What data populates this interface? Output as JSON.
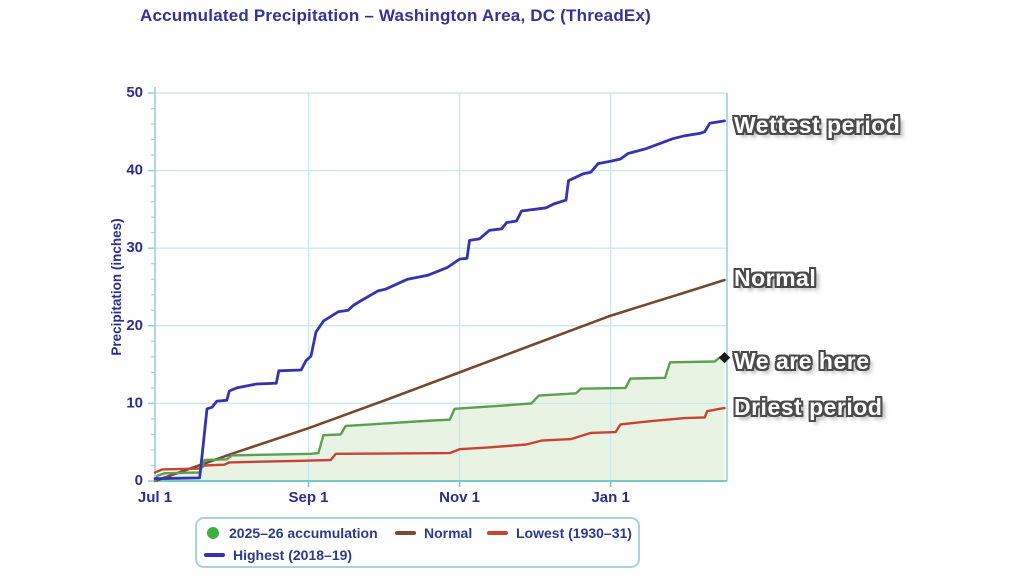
{
  "title": "Accumulated Precipitation – Washington Area, DC (ThreadEx)",
  "annotations": {
    "wettest": "Wettest period",
    "normal": "Normal",
    "here": "We are here",
    "driest": "Driest period"
  },
  "legend": {
    "items": [
      {
        "label": "2025–26 accumulation",
        "swatch": "dot",
        "color": "#3cb043"
      },
      {
        "label": "Normal",
        "swatch": "line",
        "color": "#7a4a30"
      },
      {
        "label": "Lowest (1930–31)",
        "swatch": "line",
        "color": "#c94334"
      },
      {
        "label": "Highest (2018–19)",
        "swatch": "line",
        "color": "#3434b2"
      }
    ]
  },
  "chart_data": {
    "type": "line",
    "title": "Accumulated Precipitation – Washington Area, DC (ThreadEx)",
    "xlabel": "",
    "ylabel": "Precipitation (inches)",
    "ylim": [
      0,
      50
    ],
    "y_ticks": [
      0,
      10,
      20,
      30,
      40,
      50
    ],
    "y_minor_step": 2,
    "x_days_range": [
      0,
      231
    ],
    "x_ticks": [
      {
        "label": "Jul 1",
        "day": 0
      },
      {
        "label": "Sep 1",
        "day": 62
      },
      {
        "label": "Nov 1",
        "day": 123
      },
      {
        "label": "Jan 1",
        "day": 184
      }
    ],
    "grid": true,
    "legend_position": "bottom",
    "colors": {
      "grid": "#cde7ef",
      "axis": "#9ad2da",
      "bottom_axis": "#74c8cc",
      "tick_text": "#2b2e8e",
      "area_fill": "rgba(150,200,130,0.22)",
      "end_marker": "#1a1a1a"
    },
    "series": [
      {
        "name": "Normal",
        "color": "#774830",
        "width": 2.6,
        "area": false,
        "points": [
          [
            0,
            0
          ],
          [
            31,
            3.5
          ],
          [
            62,
            6.8
          ],
          [
            92,
            10.3
          ],
          [
            123,
            14.0
          ],
          [
            153,
            17.6
          ],
          [
            184,
            21.3
          ],
          [
            215,
            24.4
          ],
          [
            230,
            25.9
          ]
        ]
      },
      {
        "name": "Lowest (1930–31)",
        "color": "#c94334",
        "width": 2.4,
        "area": false,
        "points": [
          [
            0,
            1.1
          ],
          [
            3,
            1.5
          ],
          [
            18,
            1.6
          ],
          [
            20,
            2.0
          ],
          [
            28,
            2.1
          ],
          [
            30,
            2.4
          ],
          [
            59,
            2.6
          ],
          [
            71,
            2.7
          ],
          [
            73,
            3.5
          ],
          [
            119,
            3.6
          ],
          [
            123,
            4.1
          ],
          [
            134,
            4.3
          ],
          [
            150,
            4.7
          ],
          [
            156,
            5.2
          ],
          [
            168,
            5.4
          ],
          [
            176,
            6.2
          ],
          [
            186,
            6.3
          ],
          [
            188,
            7.3
          ],
          [
            200,
            7.7
          ],
          [
            214,
            8.1
          ],
          [
            222,
            8.2
          ],
          [
            223,
            9.0
          ],
          [
            228,
            9.3
          ],
          [
            230,
            9.4
          ]
        ]
      },
      {
        "name": "2025–26 accumulation",
        "color": "#5aa04e",
        "width": 2.4,
        "area": true,
        "end_marker": true,
        "points": [
          [
            0,
            0.0
          ],
          [
            1,
            0.7
          ],
          [
            4,
            1.0
          ],
          [
            18,
            1.1
          ],
          [
            20,
            2.7
          ],
          [
            29,
            2.8
          ],
          [
            31,
            3.3
          ],
          [
            63,
            3.5
          ],
          [
            66,
            3.6
          ],
          [
            68,
            5.9
          ],
          [
            75,
            6.0
          ],
          [
            77,
            7.1
          ],
          [
            87,
            7.3
          ],
          [
            112,
            7.8
          ],
          [
            119,
            7.9
          ],
          [
            121,
            9.3
          ],
          [
            140,
            9.7
          ],
          [
            152,
            10.0
          ],
          [
            155,
            11.0
          ],
          [
            170,
            11.3
          ],
          [
            172,
            11.9
          ],
          [
            190,
            12.0
          ],
          [
            192,
            13.2
          ],
          [
            206,
            13.3
          ],
          [
            208,
            15.3
          ],
          [
            226,
            15.4
          ],
          [
            228,
            15.9
          ],
          [
            230,
            15.9
          ]
        ]
      },
      {
        "name": "Highest (2018–19)",
        "color": "#3434b2",
        "width": 2.8,
        "area": false,
        "points": [
          [
            0,
            0.3
          ],
          [
            18,
            0.4
          ],
          [
            19,
            3.2
          ],
          [
            21,
            9.3
          ],
          [
            23,
            9.5
          ],
          [
            25,
            10.3
          ],
          [
            29,
            10.4
          ],
          [
            30,
            11.6
          ],
          [
            33,
            12.0
          ],
          [
            41,
            12.5
          ],
          [
            49,
            12.6
          ],
          [
            50,
            14.2
          ],
          [
            59,
            14.3
          ],
          [
            61,
            15.5
          ],
          [
            63,
            16.1
          ],
          [
            65,
            19.2
          ],
          [
            68,
            20.6
          ],
          [
            74,
            21.8
          ],
          [
            78,
            22.0
          ],
          [
            80,
            22.6
          ],
          [
            83,
            23.2
          ],
          [
            90,
            24.5
          ],
          [
            93,
            24.7
          ],
          [
            102,
            26.0
          ],
          [
            110,
            26.5
          ],
          [
            118,
            27.5
          ],
          [
            123,
            28.6
          ],
          [
            126,
            28.7
          ],
          [
            127,
            31.0
          ],
          [
            131,
            31.2
          ],
          [
            135,
            32.3
          ],
          [
            140,
            32.5
          ],
          [
            142,
            33.3
          ],
          [
            146,
            33.5
          ],
          [
            148,
            34.8
          ],
          [
            158,
            35.2
          ],
          [
            161,
            35.7
          ],
          [
            166,
            36.2
          ],
          [
            167,
            38.7
          ],
          [
            173,
            39.6
          ],
          [
            176,
            39.8
          ],
          [
            179,
            40.9
          ],
          [
            184,
            41.2
          ],
          [
            188,
            41.5
          ],
          [
            191,
            42.2
          ],
          [
            198,
            42.8
          ],
          [
            204,
            43.5
          ],
          [
            209,
            44.1
          ],
          [
            214,
            44.5
          ],
          [
            220,
            44.8
          ],
          [
            222,
            45.0
          ],
          [
            224,
            46.1
          ],
          [
            230,
            46.4
          ]
        ]
      }
    ]
  }
}
